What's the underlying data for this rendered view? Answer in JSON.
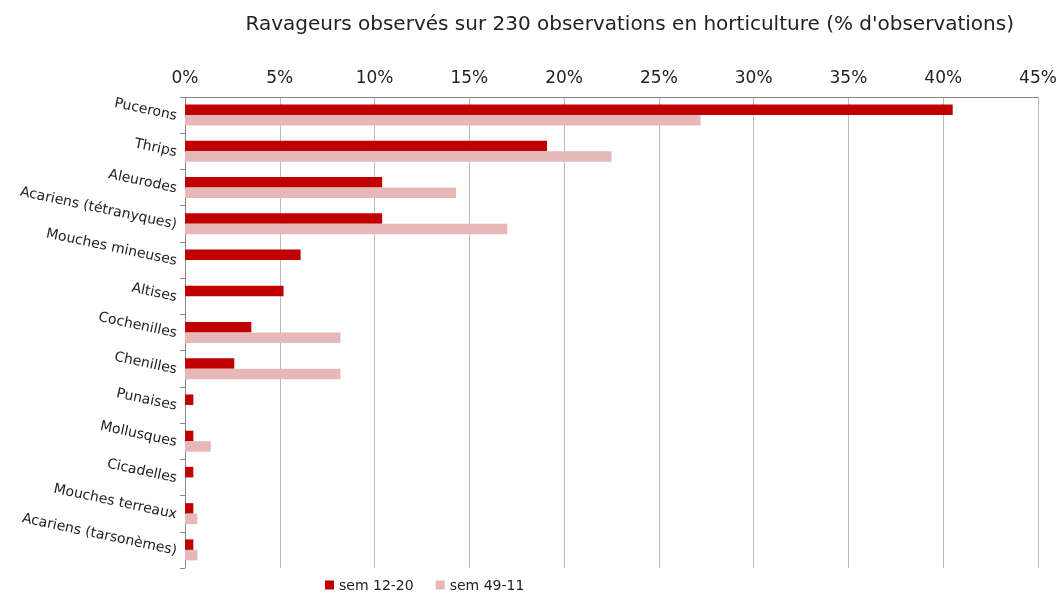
{
  "chart_data": {
    "type": "bar",
    "orientation": "horizontal",
    "title": "Ravageurs observés sur 230 observations en horticulture (% d'observations)",
    "categories": [
      "Pucerons",
      "Thrips",
      "Aleurodes",
      "Acariens (tétranyques)",
      "Mouches mineuses",
      "Altises",
      "Cochenilles",
      "Chenilles",
      "Punaises",
      "Mollusques",
      "Cicadelles",
      "Mouches terreaux",
      "Acariens (tarsonèmes)"
    ],
    "series": [
      {
        "name": "sem 12-20",
        "color": "#c00000",
        "values": [
          40.5,
          19.1,
          10.4,
          10.4,
          6.1,
          5.2,
          3.5,
          2.6,
          0.44,
          0.44,
          0.44,
          0.44,
          0.44
        ]
      },
      {
        "name": "sem 49-11",
        "color": "#e6b9b8",
        "values": [
          27.2,
          22.5,
          14.3,
          17.0,
          null,
          null,
          8.2,
          8.2,
          null,
          1.36,
          null,
          0.65,
          0.65
        ]
      }
    ],
    "xlim": [
      0,
      45
    ],
    "xticks": [
      {
        "value": 0,
        "label": "0%"
      },
      {
        "value": 5,
        "label": "5%"
      },
      {
        "value": 10,
        "label": "10%"
      },
      {
        "value": 15,
        "label": "15%"
      },
      {
        "value": 20,
        "label": "20%"
      },
      {
        "value": 25,
        "label": "25%"
      },
      {
        "value": 30,
        "label": "30%"
      },
      {
        "value": 35,
        "label": "35%"
      },
      {
        "value": 40,
        "label": "40%"
      },
      {
        "value": 45,
        "label": "45%"
      }
    ],
    "grid": "x",
    "legend": "bottom"
  }
}
